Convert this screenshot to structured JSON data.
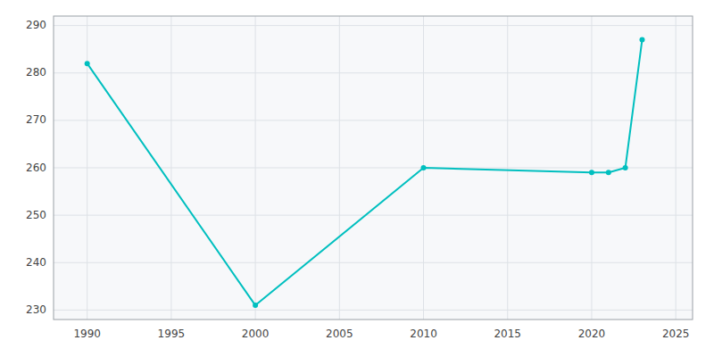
{
  "chart_data": {
    "type": "line",
    "x": [
      1990,
      2000,
      2010,
      2020,
      2021,
      2022,
      2023
    ],
    "values": [
      282,
      231,
      260,
      259,
      259,
      260,
      287
    ],
    "color": "#00BFBF",
    "marker": "circle",
    "xlim": [
      1988,
      2026
    ],
    "ylim": [
      228,
      292
    ],
    "xticks": [
      1990,
      1995,
      2000,
      2005,
      2010,
      2015,
      2020,
      2025
    ],
    "yticks": [
      230,
      240,
      250,
      260,
      270,
      280,
      290
    ],
    "grid": true
  }
}
